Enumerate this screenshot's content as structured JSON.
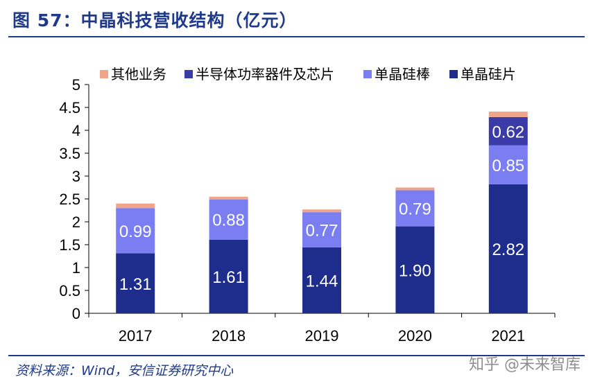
{
  "title": "图 57：中晶科技营收结构（亿元）",
  "source": "资料来源：Wind，安信证券研究中心",
  "watermark": "知乎 @未来智库",
  "chart_data": {
    "type": "bar",
    "stacked": true,
    "categories": [
      "2017",
      "2018",
      "2019",
      "2020",
      "2021"
    ],
    "ylim": [
      0,
      5
    ],
    "yticks": [
      "0",
      "0.5",
      "1",
      "1.5",
      "2",
      "2.5",
      "3",
      "3.5",
      "4",
      "4.5",
      "5"
    ],
    "legend_position": "top",
    "grid": false,
    "series": [
      {
        "name": "单晶硅片",
        "color": "#1e2d8c",
        "values": [
          1.31,
          1.61,
          1.44,
          1.9,
          2.82
        ],
        "labels": [
          "1.31",
          "1.61",
          "1.44",
          "1.90",
          "2.82"
        ]
      },
      {
        "name": "单晶硅棒",
        "color": "#7b7ef0",
        "values": [
          0.99,
          0.88,
          0.77,
          0.79,
          0.85
        ],
        "labels": [
          "0.99",
          "0.88",
          "0.77",
          "0.79",
          "0.85"
        ]
      },
      {
        "name": "半导体功率器件及芯片",
        "color": "#3b3ba8",
        "values": [
          0,
          0,
          0,
          0,
          0.62
        ],
        "labels": [
          "",
          "",
          "",
          "",
          "0.62"
        ]
      },
      {
        "name": "其他业务",
        "color": "#f0a58a",
        "values": [
          0.1,
          0.06,
          0.06,
          0.06,
          0.12
        ],
        "labels": [
          "",
          "",
          "",
          "",
          ""
        ]
      }
    ]
  }
}
